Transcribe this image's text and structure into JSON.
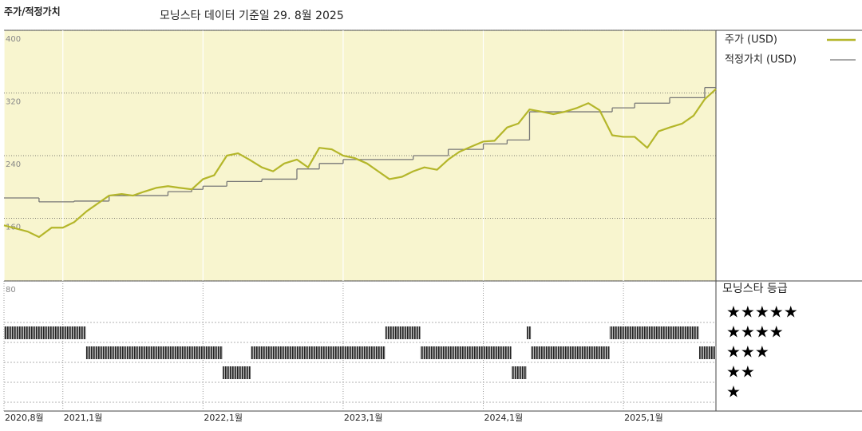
{
  "chart_data": {
    "type": "stock-fair-value",
    "title": "주가/적정가치",
    "subtitle": "모닝스타 데이터 기준일 29. 8월 2025",
    "xlim": [
      2020.58,
      2025.66
    ],
    "xticks": [
      {
        "value": 2020.58,
        "label": "2020,8월"
      },
      {
        "value": 2021.0,
        "label": "2021,1월"
      },
      {
        "value": 2022.0,
        "label": "2022,1월"
      },
      {
        "value": 2023.0,
        "label": "2023,1월"
      },
      {
        "value": 2024.0,
        "label": "2024,1월"
      },
      {
        "value": 2025.0,
        "label": "2025,1월"
      }
    ],
    "ylim": [
      80,
      400
    ],
    "yticks": [
      400,
      320,
      240,
      160,
      80
    ],
    "series": [
      {
        "name": "주가 (USD)",
        "color": "#b4b62a",
        "x": [
          2020.58,
          2020.75,
          2020.83,
          2020.92,
          2021.0,
          2021.08,
          2021.17,
          2021.25,
          2021.33,
          2021.42,
          2021.5,
          2021.58,
          2021.67,
          2021.75,
          2021.83,
          2021.92,
          2022.0,
          2022.08,
          2022.17,
          2022.25,
          2022.33,
          2022.42,
          2022.5,
          2022.58,
          2022.67,
          2022.75,
          2022.83,
          2022.92,
          2023.0,
          2023.08,
          2023.17,
          2023.25,
          2023.33,
          2023.42,
          2023.5,
          2023.58,
          2023.67,
          2023.75,
          2023.83,
          2023.92,
          2024.0,
          2024.08,
          2024.17,
          2024.25,
          2024.33,
          2024.42,
          2024.5,
          2024.58,
          2024.67,
          2024.75,
          2024.83,
          2024.92,
          2025.0,
          2025.08,
          2025.17,
          2025.25,
          2025.33,
          2025.42,
          2025.5,
          2025.58,
          2025.66
        ],
        "values": [
          151,
          143,
          136,
          148,
          148,
          155,
          169,
          179,
          189,
          191,
          189,
          194,
          199,
          201,
          199,
          197,
          210,
          215,
          240,
          243,
          235,
          225,
          220,
          230,
          235,
          225,
          250,
          248,
          240,
          237,
          230,
          220,
          210,
          213,
          220,
          225,
          222,
          235,
          245,
          252,
          258,
          259,
          276,
          281,
          299,
          296,
          293,
          296,
          301,
          307,
          298,
          266,
          264,
          264,
          250,
          271,
          276,
          281,
          291,
          312,
          325
        ]
      },
      {
        "name": "적정가치 (USD)",
        "color": "#777777",
        "x": [
          2020.58,
          2020.83,
          2021.08,
          2021.33,
          2021.75,
          2021.92,
          2022.0,
          2022.17,
          2022.42,
          2022.67,
          2022.83,
          2023.0,
          2023.5,
          2023.75,
          2024.0,
          2024.17,
          2024.33,
          2024.92,
          2025.08,
          2025.33,
          2025.58
        ],
        "values": [
          186,
          181,
          182,
          189,
          194,
          197,
          201,
          207,
          210,
          223,
          230,
          235,
          240,
          248,
          255,
          260,
          296,
          301,
          307,
          314,
          327
        ]
      }
    ],
    "ratings": {
      "title": "모닝스타 등급",
      "levels": [
        {
          "value": 5,
          "label": "★★★★★"
        },
        {
          "value": 4,
          "label": "★★★★"
        },
        {
          "value": 3,
          "label": "★★★"
        },
        {
          "value": 2,
          "label": "★★"
        },
        {
          "value": 1,
          "label": "★"
        }
      ],
      "periods": [
        {
          "start": 2020.58,
          "end": 2021.165,
          "stars": 4
        },
        {
          "start": 2021.165,
          "end": 2022.14,
          "stars": 3
        },
        {
          "start": 2022.14,
          "end": 2022.34,
          "stars": 2
        },
        {
          "start": 2022.34,
          "end": 2023.3,
          "stars": 3
        },
        {
          "start": 2023.3,
          "end": 2023.55,
          "stars": 4
        },
        {
          "start": 2023.55,
          "end": 2024.2,
          "stars": 3
        },
        {
          "start": 2024.2,
          "end": 2024.31,
          "stars": 2
        },
        {
          "start": 2024.31,
          "end": 2024.34,
          "stars": 4
        },
        {
          "start": 2024.34,
          "end": 2024.9,
          "stars": 3
        },
        {
          "start": 2024.9,
          "end": 2025.54,
          "stars": 4
        },
        {
          "start": 2025.54,
          "end": 2025.66,
          "stars": 3
        }
      ]
    }
  }
}
